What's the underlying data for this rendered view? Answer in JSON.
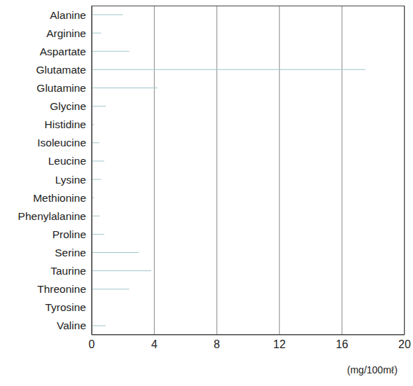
{
  "chart_data": {
    "type": "bar",
    "orientation": "horizontal",
    "categories": [
      "Alanine",
      "Arginine",
      "Aspartate",
      "Glutamate",
      "Glutamine",
      "Glycine",
      "Histidine",
      "Isoleucine",
      "Leucine",
      "Lysine",
      "Methionine",
      "Phenylalanine",
      "Proline",
      "Serine",
      "Taurine",
      "Threonine",
      "Tyrosine",
      "Valine"
    ],
    "values": [
      2.0,
      0.6,
      2.4,
      17.5,
      4.2,
      0.9,
      0.15,
      0.5,
      0.8,
      0.6,
      0.15,
      0.5,
      0.8,
      3.0,
      3.8,
      2.4,
      0,
      0.9
    ],
    "color": "#9fc5cc",
    "xlabel": "(mg/100mℓ)",
    "xlim": [
      0,
      20
    ],
    "xticks": [
      0,
      4,
      8,
      12,
      16,
      20
    ],
    "grid": true
  }
}
